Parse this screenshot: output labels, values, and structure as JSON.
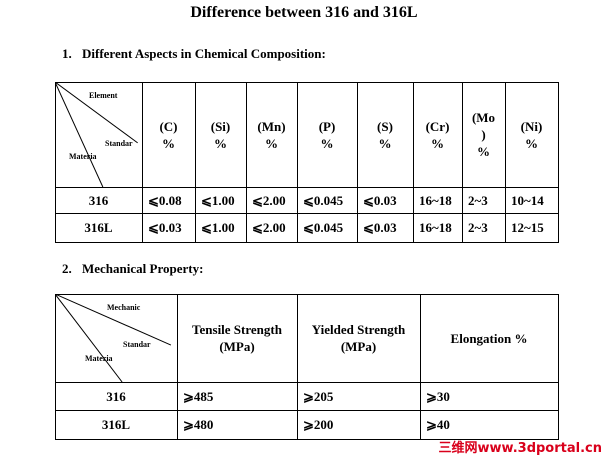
{
  "title": "Difference between 316 and 316L",
  "section1": {
    "number": "1.",
    "heading": "Different Aspects in Chemical Composition:",
    "table": {
      "corner": [
        "Element",
        "Standar",
        "Materia"
      ],
      "headers": [
        "(C) %",
        "(Si) %",
        "(Mn) %",
        "(P) %",
        "(S) %",
        "(Cr) %",
        "(Mo ) %",
        "(Ni) %"
      ],
      "rows": [
        [
          "316",
          "⩽0.08",
          "⩽1.00",
          "⩽2.00",
          "⩽0.045",
          "⩽0.03",
          "16~18",
          "2~3",
          "10~14"
        ],
        [
          "316L",
          "⩽0.03",
          "⩽1.00",
          "⩽2.00",
          "⩽0.045",
          "⩽0.03",
          "16~18",
          "2~3",
          "12~15"
        ]
      ]
    }
  },
  "section2": {
    "number": "2.",
    "heading": "Mechanical Property:",
    "table": {
      "corner": [
        "Mechanic",
        "Standar",
        "Materia"
      ],
      "headers": [
        "Tensile Strength (MPa)",
        "Yielded Strength (MPa)",
        "Elongation %"
      ],
      "rows": [
        [
          "316",
          "⩾485",
          "⩾205",
          "⩾30"
        ],
        [
          "316L",
          "⩾480",
          "⩾200",
          "⩾40"
        ]
      ]
    }
  },
  "watermark": "三维网www.3dportal.cn"
}
